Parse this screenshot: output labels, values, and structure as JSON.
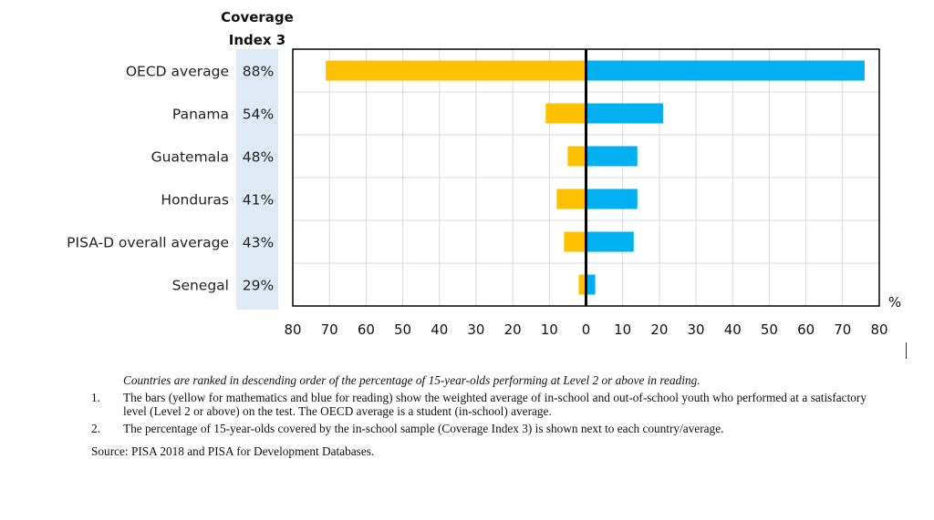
{
  "chart_data": {
    "type": "bar",
    "orientation": "horizontal-diverging",
    "categories": [
      "OECD average",
      "Panama",
      "Guatemala",
      "Honduras",
      "PISA-D overall average",
      "Senegal"
    ],
    "coverage_header": [
      "Coverage",
      "Index 3"
    ],
    "coverage": [
      "88%",
      "54%",
      "48%",
      "41%",
      "43%",
      "29%"
    ],
    "series": [
      {
        "name": "Mathematics",
        "color": "#FFC000",
        "direction": "left",
        "values": [
          71,
          11,
          5,
          8,
          6,
          2
        ]
      },
      {
        "name": "Reading",
        "color": "#00B0F0",
        "direction": "right",
        "values": [
          76,
          21,
          14,
          14,
          13,
          2.5
        ]
      }
    ],
    "x_ticks": [
      "80",
      "70",
      "60",
      "50",
      "40",
      "30",
      "20",
      "10",
      "0",
      "10",
      "20",
      "30",
      "40",
      "50",
      "60",
      "70",
      "80"
    ],
    "xlim": [
      -80,
      80
    ],
    "unit_label": "%",
    "grid": true
  },
  "notes": {
    "intro": "Countries are ranked in descending order of the percentage of 15-year-olds performing at Level 2 or above in reading.",
    "items": [
      {
        "num": "1.",
        "text": "The bars (yellow for mathematics and blue for reading) show the weighted average of in-school and out-of-school youth who performed at a satisfactory level (Level 2 or above) on the test. The OECD average is a student (in-school) average."
      },
      {
        "num": "2.",
        "text": "The percentage of 15-year-olds covered by the in-school sample (Coverage Index 3) is shown next to each country/average."
      }
    ],
    "source": "Source: PISA 2018 and PISA for Development Databases."
  }
}
